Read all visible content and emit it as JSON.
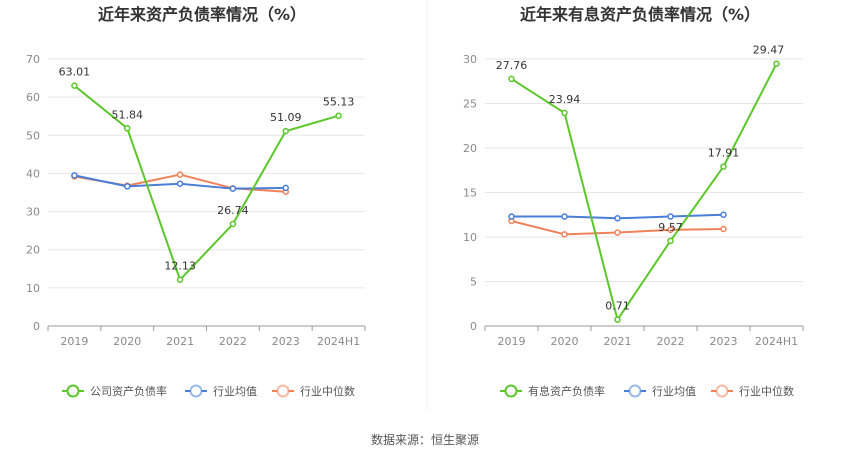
{
  "source_text": "数据来源：恒生聚源",
  "colors": {
    "company": "#5cc72a",
    "avg": "#4a7fd8",
    "median": "#f0825a"
  },
  "chart_data": [
    {
      "type": "line",
      "title": "近年来资产负债率情况（%）",
      "categories": [
        "2019",
        "2020",
        "2021",
        "2022",
        "2023",
        "2024H1"
      ],
      "ylim": [
        0,
        70
      ],
      "yticks": [
        0,
        10,
        20,
        30,
        40,
        50,
        60,
        70
      ],
      "grid": true,
      "legend_position": "bottom",
      "series": [
        {
          "name": "公司资产负债率",
          "color": "#5cc72a",
          "values": [
            63.01,
            51.84,
            12.13,
            26.74,
            51.09,
            55.13
          ],
          "labels": [
            "63.01",
            "51.84",
            "12.13",
            "26.74",
            "51.09",
            "55.13"
          ]
        },
        {
          "name": "行业均值",
          "color": "#4a7fd8",
          "values": [
            39.5,
            36.6,
            37.3,
            36.0,
            36.2,
            null
          ]
        },
        {
          "name": "行业中位数",
          "color": "#f0825a",
          "values": [
            39.2,
            36.8,
            39.7,
            36.1,
            35.2,
            null
          ]
        }
      ]
    },
    {
      "type": "line",
      "title": "近年来有息资产负债率情况（%）",
      "categories": [
        "2019",
        "2020",
        "2021",
        "2022",
        "2023",
        "2024H1"
      ],
      "ylim": [
        0,
        30
      ],
      "yticks": [
        0,
        5,
        10,
        15,
        20,
        25,
        30
      ],
      "grid": true,
      "legend_position": "bottom",
      "series": [
        {
          "name": "有息资产负债率",
          "color": "#5cc72a",
          "values": [
            27.76,
            23.94,
            0.71,
            9.57,
            17.91,
            29.47
          ],
          "labels": [
            "27.76",
            "23.94",
            "0.71",
            "9.57",
            "17.91",
            "29.47"
          ]
        },
        {
          "name": "行业均值",
          "color": "#4a7fd8",
          "values": [
            12.3,
            12.3,
            12.1,
            12.3,
            12.5,
            null
          ]
        },
        {
          "name": "行业中位数",
          "color": "#f0825a",
          "values": [
            11.8,
            10.3,
            10.5,
            10.8,
            10.9,
            null
          ]
        }
      ]
    }
  ]
}
